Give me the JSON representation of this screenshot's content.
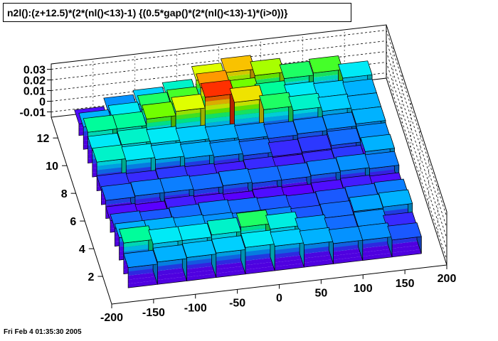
{
  "title": "n2l():(z+12.5)*(2*(nl()<13)-1) {(0.5*gap()*(2*(nl()<13)-1)*(i>0))}",
  "footer_timestamp": "Fri Feb  4 01:35:30 2005",
  "chart_data": {
    "type": "lego3d",
    "title": "n2l():(z+12.5)*(2*(nl()<13)-1) {(0.5*gap()*(2*(nl()<13)-1)*(i>0))}",
    "xlabel": "",
    "ylabel": "",
    "zlabel": "",
    "xlim": [
      -200,
      200
    ],
    "ylim": [
      0,
      13.5
    ],
    "zlim": [
      -0.015,
      0.035
    ],
    "x_ticks": [
      "-200",
      "-150",
      "-100",
      "-50",
      "0",
      "50",
      "100",
      "150",
      "200"
    ],
    "y_ticks": [
      "2",
      "4",
      "6",
      "8",
      "10",
      "12"
    ],
    "z_ticks": [
      "-0.01",
      "0",
      "0.01",
      "0.02",
      "0.03"
    ],
    "x_bin_edges": [
      -175,
      -140,
      -105,
      -70,
      -35,
      0,
      35,
      70,
      105,
      140,
      175
    ],
    "y_bin_edges": [
      1,
      2,
      3,
      4,
      5,
      6,
      7,
      8,
      9,
      10,
      11,
      12,
      13
    ],
    "color_scale": [
      "#5a00ff",
      "#2244ff",
      "#00a0ff",
      "#00e8ff",
      "#00ff90",
      "#60ff00",
      "#e6ff00",
      "#ffb000",
      "#ff3000"
    ],
    "grid": true,
    "values": [
      [
        0.004,
        0.006,
        0.007,
        0.008,
        0.01,
        0.008,
        0.006,
        0.004,
        0.004,
        0.001
      ],
      [
        0.014,
        0.01,
        0.01,
        0.012,
        0.016,
        0.011,
        0.005,
        0.002,
        0.004,
        -0.002
      ],
      [
        0.006,
        0.006,
        0.005,
        0.004,
        0.003,
        0.003,
        0.001,
        0.002,
        0.005,
        0.006
      ],
      [
        0.002,
        0.001,
        0.002,
        0.003,
        0.002,
        0.001,
        0.0,
        0.001,
        0.002,
        0.003
      ],
      [
        -0.004,
        -0.005,
        -0.003,
        -0.004,
        -0.005,
        -0.004,
        -0.005,
        -0.004,
        -0.003,
        -0.004
      ],
      [
        0.002,
        0.003,
        0.003,
        0.002,
        0.003,
        0.002,
        0.002,
        0.003,
        0.004,
        0.003
      ],
      [
        -0.001,
        -0.002,
        -0.001,
        -0.002,
        -0.003,
        -0.002,
        -0.003,
        -0.002,
        -0.001,
        0.006
      ],
      [
        0.012,
        0.01,
        0.008,
        0.006,
        0.004,
        0.002,
        -0.002,
        -0.001,
        0.002,
        0.004
      ],
      [
        0.01,
        0.012,
        0.01,
        0.008,
        0.006,
        0.004,
        0.002,
        0.003,
        0.004,
        0.006
      ],
      [
        0.014,
        0.014,
        0.02,
        0.024,
        0.034,
        0.026,
        0.016,
        0.012,
        0.008,
        0.006
      ],
      [
        0.006,
        0.01,
        0.016,
        0.018,
        0.03,
        0.02,
        0.014,
        0.01,
        0.008,
        0.006
      ],
      [
        -0.004,
        0.004,
        0.008,
        0.012,
        0.024,
        0.028,
        0.022,
        0.016,
        0.018,
        0.01
      ]
    ]
  }
}
